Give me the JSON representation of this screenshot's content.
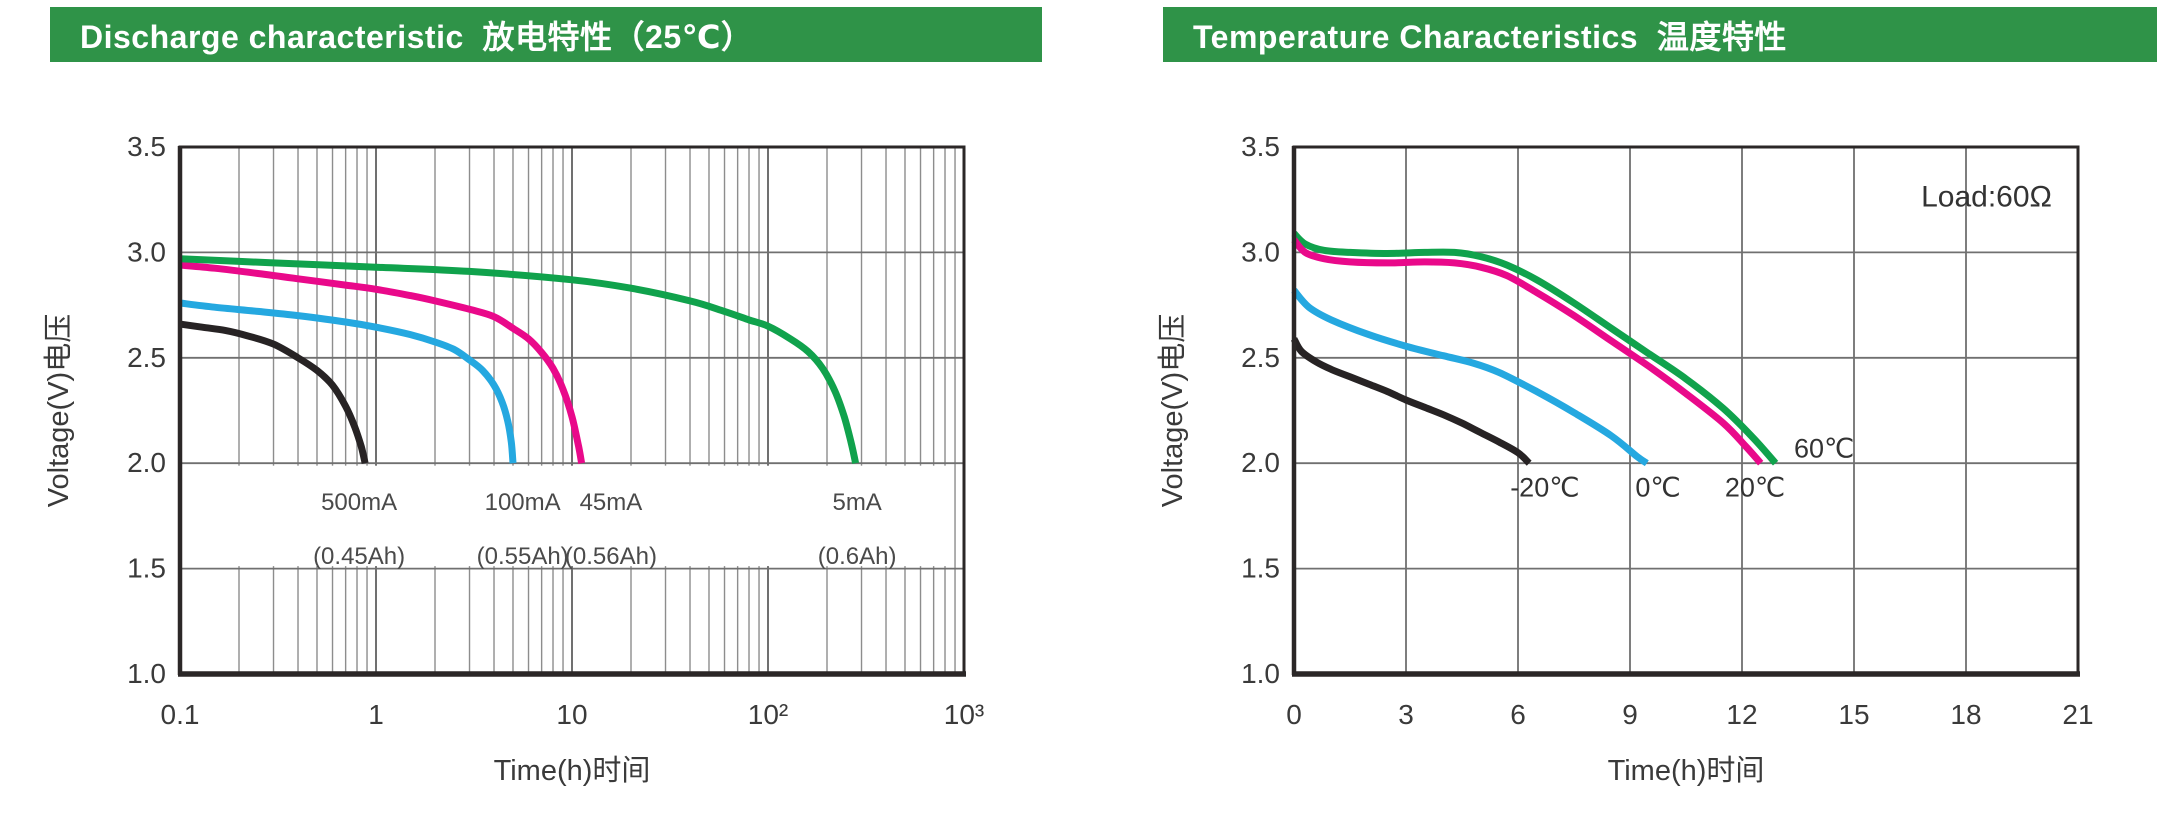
{
  "page": {
    "background": "#ffffff"
  },
  "banners": {
    "left": {
      "label": "Discharge characteristic  放电特性（25℃）"
    },
    "right": {
      "label": "Temperature Characteristics  温度特性"
    }
  },
  "colors": {
    "banner": "#2F9348",
    "banner_text": "#ffffff",
    "grid": "#8d8d8d",
    "grid_major": "#707070",
    "frame": "#2b2727",
    "text": "#3a3a3a",
    "annotation_text": "#333333",
    "band_text": "#4a4a4a",
    "series_green": "#10A24C",
    "series_pink": "#E9098A",
    "series_blue": "#25A8E0",
    "series_black": "#272324"
  },
  "chart_data": [
    {
      "id": "discharge",
      "type": "line",
      "title": "Discharge characteristic 放电特性（25℃）",
      "xlabel": "Time(h)时间",
      "ylabel": "Voltage(V)电压",
      "x_scale": "log",
      "xlim": [
        0.1,
        1000
      ],
      "ylim": [
        1.0,
        3.5
      ],
      "grid": true,
      "x_ticks": [
        {
          "value": 0.1,
          "label": "0.1"
        },
        {
          "value": 1,
          "label": "1"
        },
        {
          "value": 10,
          "label": "10"
        },
        {
          "value": 100,
          "label": "10²"
        },
        {
          "value": 1000,
          "label": "10³"
        }
      ],
      "y_ticks": [
        {
          "value": 3.5,
          "label": "3.5"
        },
        {
          "value": 3.0,
          "label": "3.0"
        },
        {
          "value": 2.5,
          "label": "2.5"
        },
        {
          "value": 2.0,
          "label": "2.0"
        },
        {
          "value": 1.5,
          "label": "1.5"
        },
        {
          "value": 1.0,
          "label": "1.0"
        }
      ],
      "label_band": {
        "between_v": [
          2.0,
          1.5
        ],
        "row_v": [
          1.815,
          1.56
        ]
      },
      "series": [
        {
          "name": "500mA",
          "capacity": "(0.45Ah)",
          "color_key": "series_black",
          "label_t": 0.82,
          "points": [
            [
              0.1,
              2.66
            ],
            [
              0.13,
              2.645
            ],
            [
              0.17,
              2.63
            ],
            [
              0.22,
              2.605
            ],
            [
              0.3,
              2.565
            ],
            [
              0.4,
              2.5
            ],
            [
              0.5,
              2.44
            ],
            [
              0.6,
              2.37
            ],
            [
              0.7,
              2.27
            ],
            [
              0.78,
              2.17
            ],
            [
              0.84,
              2.08
            ],
            [
              0.88,
              2.0
            ]
          ]
        },
        {
          "name": "100mA",
          "capacity": "(0.55Ah)",
          "color_key": "series_blue",
          "label_t": 5.6,
          "points": [
            [
              0.1,
              2.76
            ],
            [
              0.15,
              2.74
            ],
            [
              0.25,
              2.72
            ],
            [
              0.4,
              2.7
            ],
            [
              0.7,
              2.67
            ],
            [
              1.0,
              2.645
            ],
            [
              1.5,
              2.61
            ],
            [
              2.0,
              2.575
            ],
            [
              2.5,
              2.54
            ],
            [
              3.0,
              2.49
            ],
            [
              3.5,
              2.44
            ],
            [
              4.0,
              2.37
            ],
            [
              4.4,
              2.29
            ],
            [
              4.7,
              2.2
            ],
            [
              4.9,
              2.1
            ],
            [
              5.0,
              2.0
            ]
          ]
        },
        {
          "name": "45mA",
          "capacity": "(0.56Ah)",
          "color_key": "series_pink",
          "label_t": 15.8,
          "points": [
            [
              0.1,
              2.94
            ],
            [
              0.15,
              2.925
            ],
            [
              0.25,
              2.9
            ],
            [
              0.4,
              2.875
            ],
            [
              0.7,
              2.845
            ],
            [
              1.0,
              2.825
            ],
            [
              1.5,
              2.795
            ],
            [
              2.0,
              2.77
            ],
            [
              3.0,
              2.73
            ],
            [
              4.0,
              2.695
            ],
            [
              5.0,
              2.64
            ],
            [
              6.0,
              2.59
            ],
            [
              7.0,
              2.525
            ],
            [
              8.0,
              2.45
            ],
            [
              9.0,
              2.35
            ],
            [
              10.0,
              2.22
            ],
            [
              10.8,
              2.08
            ],
            [
              11.2,
              2.0
            ]
          ]
        },
        {
          "name": "5mA",
          "capacity": "(0.6Ah)",
          "color_key": "series_green",
          "label_t": 285,
          "points": [
            [
              0.1,
              2.97
            ],
            [
              0.3,
              2.95
            ],
            [
              1,
              2.93
            ],
            [
              3,
              2.91
            ],
            [
              10,
              2.87
            ],
            [
              20,
              2.83
            ],
            [
              40,
              2.77
            ],
            [
              60,
              2.72
            ],
            [
              80,
              2.68
            ],
            [
              100,
              2.65
            ],
            [
              130,
              2.59
            ],
            [
              160,
              2.53
            ],
            [
              190,
              2.45
            ],
            [
              220,
              2.34
            ],
            [
              245,
              2.22
            ],
            [
              265,
              2.1
            ],
            [
              280,
              2.0
            ]
          ]
        }
      ],
      "annotations": []
    },
    {
      "id": "temperature",
      "type": "line",
      "title": "Temperature Characteristics 温度特性",
      "xlabel": "Time(h)时间",
      "ylabel": "Voltage(V)电压",
      "x_scale": "linear",
      "xlim": [
        0,
        21
      ],
      "ylim": [
        1.0,
        3.5
      ],
      "grid": true,
      "x_ticks": [
        {
          "value": 0,
          "label": "0"
        },
        {
          "value": 3,
          "label": "3"
        },
        {
          "value": 6,
          "label": "6"
        },
        {
          "value": 9,
          "label": "9"
        },
        {
          "value": 12,
          "label": "12"
        },
        {
          "value": 15,
          "label": "15"
        },
        {
          "value": 18,
          "label": "18"
        },
        {
          "value": 21,
          "label": "21"
        }
      ],
      "y_ticks": [
        {
          "value": 3.5,
          "label": "3.5"
        },
        {
          "value": 3.0,
          "label": "3.0"
        },
        {
          "value": 2.5,
          "label": "2.5"
        },
        {
          "value": 2.0,
          "label": "2.0"
        },
        {
          "value": 1.5,
          "label": "1.5"
        },
        {
          "value": 1.0,
          "label": "1.0"
        }
      ],
      "series": [
        {
          "name": "60℃",
          "color_key": "series_green",
          "points": [
            [
              0,
              3.09
            ],
            [
              0.3,
              3.04
            ],
            [
              0.8,
              3.01
            ],
            [
              1.5,
              3.0
            ],
            [
              2.5,
              2.995
            ],
            [
              3.5,
              3.0
            ],
            [
              4.3,
              3.0
            ],
            [
              5,
              2.98
            ],
            [
              5.7,
              2.94
            ],
            [
              6.5,
              2.87
            ],
            [
              7.5,
              2.76
            ],
            [
              8.5,
              2.64
            ],
            [
              9.5,
              2.52
            ],
            [
              10.5,
              2.4
            ],
            [
              11.5,
              2.26
            ],
            [
              12.3,
              2.12
            ],
            [
              12.9,
              2.0
            ]
          ]
        },
        {
          "name": "20℃",
          "color_key": "series_pink",
          "points": [
            [
              0,
              3.06
            ],
            [
              0.3,
              3.0
            ],
            [
              0.8,
              2.97
            ],
            [
              1.5,
              2.955
            ],
            [
              2.5,
              2.95
            ],
            [
              3.5,
              2.955
            ],
            [
              4.3,
              2.95
            ],
            [
              5,
              2.93
            ],
            [
              5.7,
              2.89
            ],
            [
              6.5,
              2.81
            ],
            [
              7.5,
              2.7
            ],
            [
              8.5,
              2.58
            ],
            [
              9.5,
              2.46
            ],
            [
              10.5,
              2.33
            ],
            [
              11.5,
              2.19
            ],
            [
              12.1,
              2.08
            ],
            [
              12.5,
              2.0
            ]
          ]
        },
        {
          "name": "0℃",
          "color_key": "series_blue",
          "points": [
            [
              0,
              2.82
            ],
            [
              0.4,
              2.74
            ],
            [
              1,
              2.68
            ],
            [
              2,
              2.61
            ],
            [
              3,
              2.555
            ],
            [
              4,
              2.51
            ],
            [
              4.8,
              2.475
            ],
            [
              5.5,
              2.43
            ],
            [
              6.5,
              2.34
            ],
            [
              7.5,
              2.24
            ],
            [
              8.5,
              2.13
            ],
            [
              9.2,
              2.03
            ],
            [
              9.45,
              2.0
            ]
          ]
        },
        {
          "name": "-20℃",
          "color_key": "series_black",
          "points": [
            [
              0,
              2.59
            ],
            [
              0.2,
              2.53
            ],
            [
              0.6,
              2.48
            ],
            [
              1,
              2.445
            ],
            [
              1.5,
              2.41
            ],
            [
              2,
              2.375
            ],
            [
              2.5,
              2.34
            ],
            [
              3,
              2.3
            ],
            [
              3.5,
              2.265
            ],
            [
              4,
              2.23
            ],
            [
              4.5,
              2.19
            ],
            [
              5,
              2.145
            ],
            [
              5.5,
              2.1
            ],
            [
              6,
              2.05
            ],
            [
              6.3,
              2.0
            ]
          ]
        }
      ],
      "annotations": [
        {
          "text": "-20℃",
          "t": 6.72,
          "v": 1.885,
          "size": 27
        },
        {
          "text": "0℃",
          "t": 9.75,
          "v": 1.885,
          "size": 27
        },
        {
          "text": "20℃",
          "t": 12.35,
          "v": 1.885,
          "size": 27
        },
        {
          "text": "60℃",
          "t": 14.2,
          "v": 2.07,
          "size": 27
        },
        {
          "text": "Load:60Ω",
          "t": 18.55,
          "v": 3.26,
          "size": 30
        }
      ]
    }
  ]
}
